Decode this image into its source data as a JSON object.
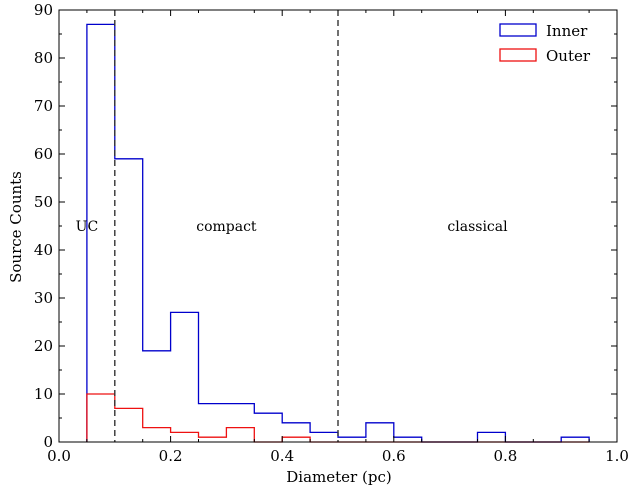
{
  "chart_data": {
    "type": "histogram",
    "title": "",
    "xlabel": "Diameter (pc)",
    "ylabel": "Source Counts",
    "xlim": [
      0.0,
      1.0
    ],
    "ylim": [
      0,
      90
    ],
    "xticks": [
      "0.0",
      "0.2",
      "0.4",
      "0.6",
      "0.8",
      "1.0"
    ],
    "yticks": [
      "0",
      "10",
      "20",
      "30",
      "40",
      "50",
      "60",
      "70",
      "80",
      "90"
    ],
    "grid": false,
    "legend_position": "top-right",
    "bin_edges": [
      0.05,
      0.1,
      0.15,
      0.2,
      0.25,
      0.3,
      0.35,
      0.4,
      0.45,
      0.5,
      0.55,
      0.6,
      0.65,
      0.7,
      0.75,
      0.8,
      0.85,
      0.9,
      0.95
    ],
    "series": [
      {
        "name": "Inner",
        "color": "#0000cc",
        "values": [
          87,
          59,
          19,
          27,
          8,
          8,
          6,
          4,
          2,
          1,
          4,
          1,
          0,
          0,
          2,
          0,
          0,
          1
        ]
      },
      {
        "name": "Outer",
        "color": "#ee1111",
        "values": [
          10,
          7,
          3,
          2,
          1,
          3,
          0,
          1,
          0,
          0,
          0,
          0,
          0,
          0,
          0,
          0,
          0,
          0
        ]
      }
    ],
    "vlines": [
      0.1,
      0.5
    ],
    "region_labels": [
      {
        "text": "UC",
        "x": 0.05,
        "y": 45
      },
      {
        "text": "compact",
        "x": 0.3,
        "y": 45
      },
      {
        "text": "classical",
        "x": 0.75,
        "y": 45
      }
    ]
  }
}
